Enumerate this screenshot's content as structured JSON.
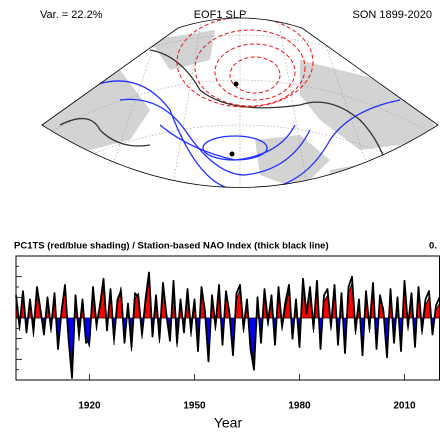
{
  "chart_data": {
    "type": "line",
    "map_title_left": "Var. = 22.2%",
    "map_title_center": "EOF1 SLP",
    "map_title_right": "SON 1899-2020",
    "title": "PC1TS (red/blue shading) / Station-based NAO Index (thick black line)",
    "corner_text": "0.",
    "xlabel": "Year",
    "x": [
      1899,
      1900,
      1901,
      1902,
      1903,
      1904,
      1905,
      1906,
      1907,
      1908,
      1909,
      1910,
      1911,
      1912,
      1913,
      1914,
      1915,
      1916,
      1917,
      1918,
      1919,
      1920,
      1921,
      1922,
      1923,
      1924,
      1925,
      1926,
      1927,
      1928,
      1929,
      1930,
      1931,
      1932,
      1933,
      1934,
      1935,
      1936,
      1937,
      1938,
      1939,
      1940,
      1941,
      1942,
      1943,
      1944,
      1945,
      1946,
      1947,
      1948,
      1949,
      1950,
      1951,
      1952,
      1953,
      1954,
      1955,
      1956,
      1957,
      1958,
      1959,
      1960,
      1961,
      1962,
      1963,
      1964,
      1965,
      1966,
      1967,
      1968,
      1969,
      1970,
      1971,
      1972,
      1973,
      1974,
      1975,
      1976,
      1977,
      1978,
      1979,
      1980,
      1981,
      1982,
      1983,
      1984,
      1985,
      1986,
      1987,
      1988,
      1989,
      1990,
      1991,
      1992,
      1993,
      1994,
      1995,
      1996,
      1997,
      1998,
      1999,
      2000,
      2001,
      2002,
      2003,
      2004,
      2005,
      2006,
      2007,
      2008,
      2009,
      2010,
      2011,
      2012,
      2013,
      2014,
      2015,
      2016,
      2017,
      2018,
      2019,
      2020
    ],
    "xlim": [
      1899,
      2020
    ],
    "xticks": [
      1920,
      1950,
      1980,
      2010
    ],
    "ylim": [
      -3,
      3
    ],
    "yticks": [
      -3,
      -2.5,
      -2,
      -1.5,
      -1,
      -0.5,
      0,
      0.5,
      1,
      1.5,
      2,
      2.5,
      3
    ],
    "series": [
      {
        "color": "#000000",
        "color_positive": "#ff0000",
        "color_negative": "#0000ff",
        "values": [
          0.9,
          -0.6,
          1.1,
          -0.4,
          0.7,
          -0.9,
          1.3,
          0.2,
          -0.5,
          0.8,
          -0.7,
          1.0,
          -1.2,
          0.5,
          1.4,
          -0.8,
          -2.6,
          0.9,
          -1.1,
          0.6,
          -0.9,
          -1.4,
          1.2,
          -0.6,
          0.8,
          1.6,
          -0.4,
          1.1,
          -1.3,
          0.7,
          1.5,
          -0.9,
          0.4,
          -1.6,
          0.9,
          1.2,
          -1.0,
          0.6,
          1.9,
          -0.7,
          0.8,
          -1.2,
          1.4,
          0.3,
          -0.8,
          1.5,
          -1.4,
          0.6,
          -0.5,
          1.1,
          -0.9,
          0.7,
          -1.3,
          1.2,
          0.5,
          -1.9,
          0.8,
          -0.6,
          1.3,
          -1.1,
          1.0,
          0.4,
          -1.5,
          0.9,
          1.4,
          -0.7,
          0.6,
          -1.2,
          -2.3,
          0.8,
          -0.9,
          1.1,
          -0.4,
          0.9,
          -1.0,
          1.2,
          -0.6,
          0.5,
          1.3,
          -0.8,
          0.7,
          -1.1,
          1.6,
          0.4,
          1.2,
          -0.7,
          1.5,
          -1.3,
          0.8,
          1.1,
          -0.6,
          1.3,
          -1.0,
          0.9,
          -1.4,
          1.2,
          1.7,
          -0.8,
          0.6,
          -1.5,
          1.0,
          -0.7,
          1.4,
          -1.2,
          0.8,
          0.5,
          -1.6,
          1.1,
          -0.9,
          0.7,
          -1.3,
          1.5,
          -0.6,
          0.9,
          -1.1,
          1.2,
          -0.8,
          0.6,
          1.0,
          -0.5,
          0.4,
          0.7
        ]
      },
      {
        "color": "#000000",
        "values": [
          1.1,
          -0.4,
          1.3,
          -0.7,
          0.9,
          -0.6,
          1.5,
          0.4,
          -0.8,
          1.0,
          -0.5,
          1.2,
          -1.5,
          0.3,
          1.6,
          -1.0,
          -2.9,
          1.1,
          -0.8,
          0.9,
          -1.2,
          -1.1,
          1.5,
          -0.3,
          0.6,
          1.9,
          -0.6,
          1.4,
          -1.0,
          0.9,
          1.3,
          -1.2,
          0.7,
          -1.4,
          1.2,
          1.0,
          -0.8,
          0.9,
          2.2,
          -0.9,
          1.1,
          -1.0,
          1.7,
          0.1,
          -1.1,
          1.8,
          -1.2,
          0.9,
          -0.7,
          1.4,
          -0.6,
          0.9,
          -1.6,
          1.5,
          0.3,
          -2.1,
          1.1,
          -0.4,
          1.6,
          -1.3,
          1.3,
          0.2,
          -1.8,
          1.2,
          1.6,
          -0.5,
          0.9,
          -1.5,
          -2.5,
          1.0,
          -1.2,
          1.4,
          -0.2,
          1.1,
          -1.3,
          1.5,
          -0.4,
          0.8,
          1.6,
          -1.0,
          0.9,
          -1.4,
          1.9,
          0.2,
          1.5,
          -0.5,
          1.8,
          -1.5,
          1.1,
          1.4,
          -0.4,
          1.6,
          -1.3,
          1.2,
          -1.7,
          1.5,
          2.0,
          -0.6,
          0.9,
          -1.8,
          1.3,
          -0.5,
          1.7,
          -1.5,
          1.1,
          0.3,
          -1.9,
          1.4,
          -1.2,
          1.0,
          -1.6,
          1.8,
          -0.4,
          1.2,
          -1.4,
          1.5,
          -0.6,
          0.9,
          1.3,
          -0.8,
          0.6,
          1.0
        ]
      }
    ]
  }
}
